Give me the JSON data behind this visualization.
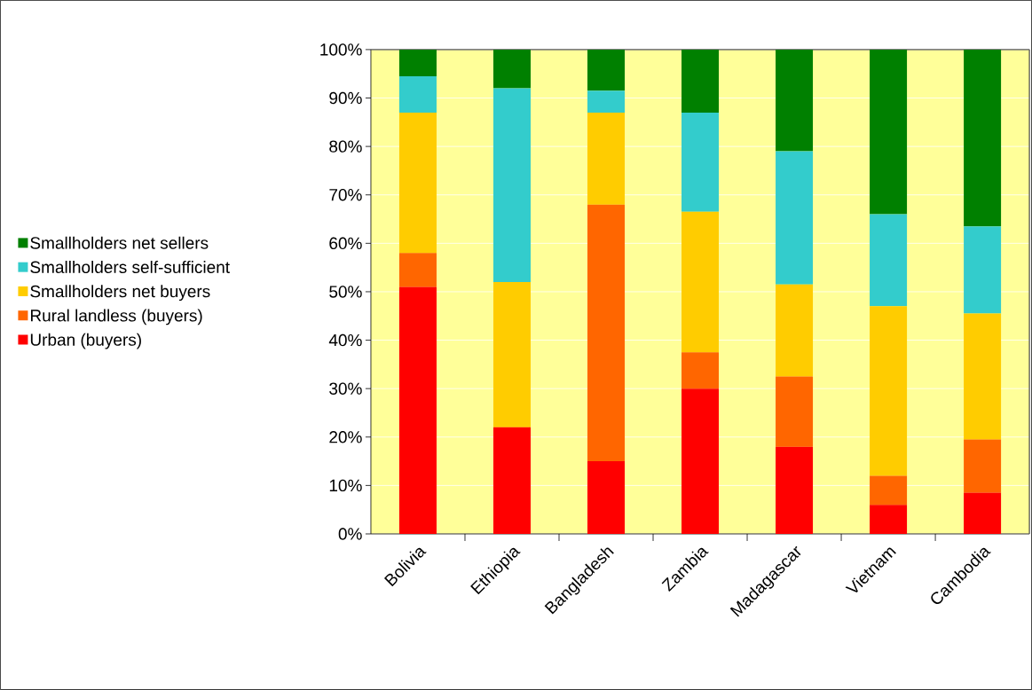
{
  "chart_data": {
    "type": "bar",
    "stacked": true,
    "categories": [
      "Bolivia",
      "Ethiopia",
      "Bangladesh",
      "Zambia",
      "Madagascar",
      "Vietnam",
      "Cambodia"
    ],
    "series": [
      {
        "name": "Urban (buyers)",
        "color": "#ff0000",
        "values": [
          51,
          22,
          15,
          30,
          18,
          6,
          8.5
        ]
      },
      {
        "name": "Rural landless (buyers)",
        "color": "#ff6600",
        "values": [
          7,
          0,
          53,
          7.5,
          14.5,
          6,
          11
        ]
      },
      {
        "name": "Smallholders net buyers",
        "color": "#ffcc00",
        "values": [
          29,
          30,
          19,
          29,
          19,
          35,
          26
        ]
      },
      {
        "name": "Smallholders self-sufficient",
        "color": "#33cccc",
        "values": [
          7.5,
          40,
          4.5,
          20.5,
          27.5,
          19,
          18
        ]
      },
      {
        "name": "Smallholders net sellers",
        "color": "#008000",
        "values": [
          5.5,
          8,
          8.5,
          13,
          21,
          34,
          36.5
        ]
      }
    ],
    "ylim": [
      0,
      100
    ],
    "yticks": [
      {
        "value": 0,
        "label": "0%"
      },
      {
        "value": 10,
        "label": "10%"
      },
      {
        "value": 20,
        "label": "20%"
      },
      {
        "value": 30,
        "label": "30%"
      },
      {
        "value": 40,
        "label": "40%"
      },
      {
        "value": 50,
        "label": "50%"
      },
      {
        "value": 60,
        "label": "60%"
      },
      {
        "value": 70,
        "label": "70%"
      },
      {
        "value": 80,
        "label": "80%"
      },
      {
        "value": 90,
        "label": "90%"
      },
      {
        "value": 100,
        "label": "100%"
      }
    ],
    "grid": "y",
    "legend": "left"
  }
}
